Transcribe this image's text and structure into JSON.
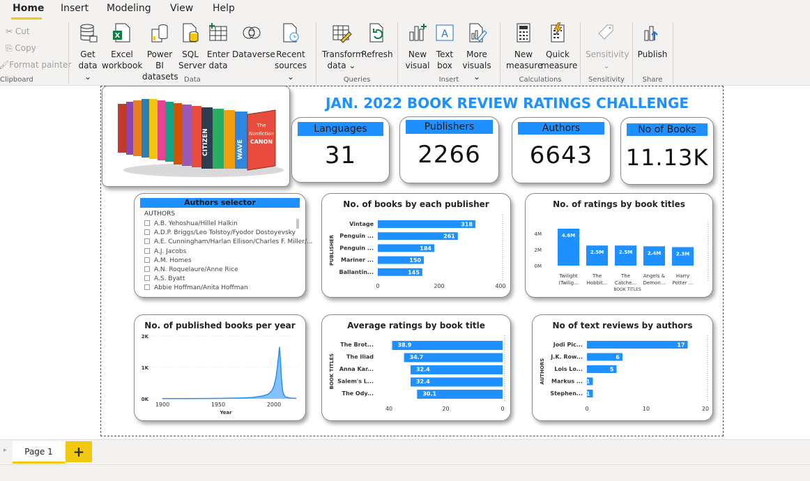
{
  "ribbon": {
    "tabs": [
      "Home",
      "Insert",
      "Modeling",
      "View",
      "Help"
    ],
    "clipboard": {
      "cut": "Cut",
      "copy": "Copy",
      "format_painter": "Format painter",
      "group": "Clipboard"
    },
    "data": {
      "get_data": [
        "Get",
        "data ⌄"
      ],
      "excel": [
        "Excel",
        "workbook"
      ],
      "powerbi": [
        "Power BI",
        "datasets"
      ],
      "sql": [
        "SQL",
        "Server"
      ],
      "enter": [
        "Enter",
        "data"
      ],
      "dataverse": [
        "Dataverse",
        ""
      ],
      "recent": [
        "Recent",
        "sources ⌄"
      ],
      "group": "Data"
    },
    "queries": {
      "transform": [
        "Transform",
        "data ⌄"
      ],
      "refresh": [
        "Refresh",
        ""
      ],
      "group": "Queries"
    },
    "insert": {
      "new_visual": [
        "New",
        "visual"
      ],
      "text_box": [
        "Text",
        "box"
      ],
      "more_visuals": [
        "More",
        "visuals ⌄"
      ],
      "group": "Insert"
    },
    "calculations": {
      "new_measure": [
        "New",
        "measure"
      ],
      "quick_measure": [
        "Quick",
        "measure"
      ],
      "group": "Calculations"
    },
    "sensitivity": {
      "label": "Sensitivity",
      "caret": "⌄",
      "group": "Sensitivity"
    },
    "share": {
      "publish": "Publish",
      "group": "Share"
    }
  },
  "dashboard": {
    "title": "JAN. 2022 BOOK REVIEW RATINGS CHALLENGE",
    "kpis": [
      {
        "label": "Languages",
        "value": "31"
      },
      {
        "label": "Publishers",
        "value": "2266"
      },
      {
        "label": "Authors",
        "value": "6643"
      },
      {
        "label": "No of Books",
        "value": "11.13K"
      }
    ],
    "image_text": {
      "spine1": "CITIZEN",
      "spine2": "WAVE",
      "cover1": "The",
      "cover2": "Nonfiction",
      "cover3": "CANON"
    },
    "slicer": {
      "title": "Authors selector",
      "header": "AUTHORS",
      "items": [
        "A.B. Yehoshua/Hillel Halkin",
        "A.D.P. Briggs/Leo Tolstoy/Fyodor Dostoyevsky",
        "A.E. Cunningham/Harlan Ellison/Charles F. Miller/...",
        "A.J. Jacobs",
        "A.M. Homes",
        "A.N. Roquelaure/Anne Rice",
        "A.S. Byatt",
        "Abbie Hoffman/Anita Hoffman"
      ]
    }
  },
  "chart_data": [
    {
      "type": "bar",
      "orientation": "horizontal",
      "title": "No. of books by each publisher",
      "ylabel": "PUBLISHER",
      "categories": [
        "Vintage",
        "Penguin ...",
        "Penguin ...",
        "Mariner ...",
        "Ballantin..."
      ],
      "values": [
        318,
        261,
        184,
        150,
        145
      ],
      "labels": [
        "318",
        "261",
        "184",
        "150",
        "145"
      ],
      "xticks": [
        "0",
        "200",
        "400"
      ],
      "xlim": [
        0,
        400
      ]
    },
    {
      "type": "bar",
      "title": "No. of ratings by book titles",
      "xlabel": "BOOK TITLES",
      "categories": [
        [
          "Twilight",
          "(Twilig..."
        ],
        [
          "The",
          "Hobbit..."
        ],
        [
          "The",
          "Catche..."
        ],
        [
          "Angels &",
          "Demon..."
        ],
        [
          "Harry",
          "Potter ..."
        ]
      ],
      "values": [
        4.6,
        2.5,
        2.5,
        2.4,
        2.3
      ],
      "labels": [
        "4.6M",
        "2.5M",
        "2.5M",
        "2.4M",
        "2.3M"
      ],
      "yticks": [
        "4M",
        "2M",
        "0M"
      ],
      "ylim": [
        0,
        4.6
      ]
    },
    {
      "type": "area",
      "title": "No. of published books per year",
      "xlabel": "Year",
      "xticks": [
        "1900",
        "1950",
        "2000"
      ],
      "yticks": [
        "2K",
        "1K",
        "0K"
      ],
      "xlim": [
        1890,
        2020
      ],
      "ylim": [
        0,
        2000
      ],
      "x": [
        1900,
        1920,
        1940,
        1950,
        1960,
        1970,
        1980,
        1985,
        1990,
        1995,
        1998,
        2000,
        2002,
        2003,
        2004,
        2005,
        2006,
        2007,
        2008,
        2010,
        2015,
        2020
      ],
      "y": [
        5,
        5,
        8,
        10,
        15,
        25,
        40,
        60,
        90,
        150,
        250,
        400,
        700,
        1000,
        1300,
        1650,
        1100,
        500,
        200,
        60,
        20,
        10
      ]
    },
    {
      "type": "bar",
      "orientation": "horizontal",
      "title": "Average ratings by book title",
      "ylabel": "BOOK TITLES",
      "categories": [
        "The Brot...",
        "The Iliad",
        "Anna Kar...",
        "Salem's L...",
        "The Ody..."
      ],
      "values": [
        38.9,
        34.7,
        32.4,
        32.4,
        30.1
      ],
      "labels": [
        "38.9",
        "34.7",
        "32.4",
        "32.4",
        "30.1"
      ],
      "xticks": [
        "40",
        "20",
        "0"
      ],
      "xlim": [
        0,
        40
      ],
      "reversed": true
    },
    {
      "type": "bar",
      "orientation": "horizontal",
      "title": "No of text reviews by authors",
      "ylabel": "AUTHORS",
      "categories": [
        "Jodi Pic...",
        "J.K. Row...",
        "Lois Lo...",
        "Markus ...",
        "Stephen..."
      ],
      "values": [
        17,
        6,
        5,
        1,
        1
      ],
      "labels": [
        "17",
        "6",
        "5",
        "1",
        "1"
      ],
      "xticks": [
        "0",
        "10",
        "20"
      ],
      "xlim": [
        0,
        20
      ]
    }
  ],
  "footer": {
    "page_tab": "Page 1",
    "add": "+"
  },
  "colors": {
    "accent": "#1e90ff",
    "pbi_yellow": "#f2c811"
  }
}
